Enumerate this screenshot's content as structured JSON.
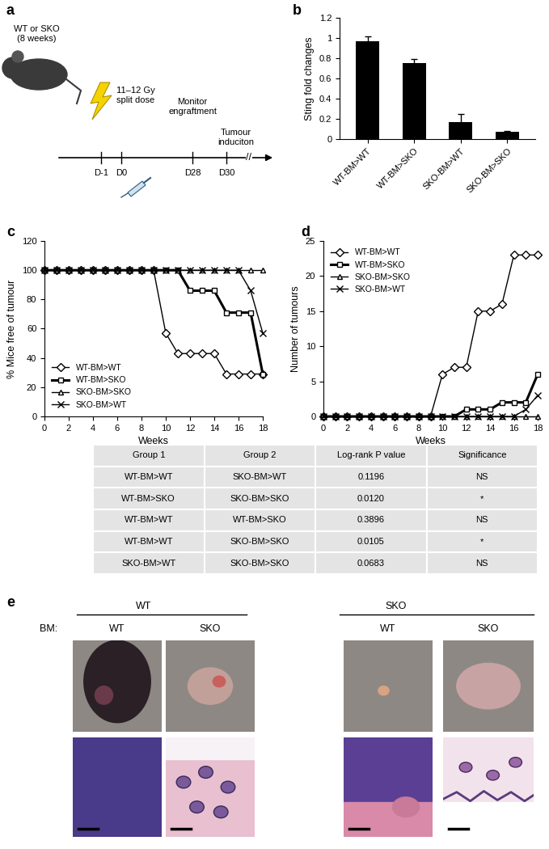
{
  "panel_labels": [
    "a",
    "b",
    "c",
    "d",
    "e"
  ],
  "schematic": {
    "mouse_label": "WT or SKO\n(8 weeks)",
    "irradiation": "11–12 Gy\nsplit dose",
    "monitor": "Monitor\nengraftment",
    "induction": "Tumour\ninduciton",
    "timepoints": [
      "D-1",
      "D0",
      "D28",
      "D30"
    ],
    "break": "//"
  },
  "chart_data": [
    {
      "type": "bar",
      "ylabel": "Sting fold changes",
      "categories": [
        "WT-BM>WT",
        "WT-BM>SKO",
        "SKO-BM>WT",
        "SKO-BM>SKO"
      ],
      "values": [
        0.97,
        0.75,
        0.17,
        0.07
      ],
      "errors": [
        0.05,
        0.04,
        0.08,
        0.01
      ],
      "color": "#000000",
      "ylim": [
        0,
        1.2
      ],
      "yticks": [
        0,
        0.2,
        0.4,
        0.6,
        0.8,
        1,
        1.2
      ]
    },
    {
      "type": "line",
      "xlabel": "Weeks",
      "ylabel": "% Mice free of tumour",
      "x": [
        0,
        1,
        2,
        3,
        4,
        5,
        6,
        7,
        8,
        9,
        10,
        11,
        12,
        13,
        14,
        15,
        16,
        17,
        18
      ],
      "series": [
        {
          "name": "WT-BM>WT",
          "color": "#000000",
          "marker": "diamond",
          "values": [
            100,
            100,
            100,
            100,
            100,
            100,
            100,
            100,
            100,
            100,
            57,
            43,
            43,
            43,
            43,
            29,
            29,
            29,
            29
          ]
        },
        {
          "name": "WT-BM>SKO",
          "color": "#000000",
          "marker": "square",
          "values": [
            100,
            100,
            100,
            100,
            100,
            100,
            100,
            100,
            100,
            100,
            100,
            100,
            86,
            86,
            86,
            71,
            71,
            71,
            29
          ]
        },
        {
          "name": "SKO-BM>SKO",
          "color": "#000000",
          "marker": "triangle",
          "values": [
            100,
            100,
            100,
            100,
            100,
            100,
            100,
            100,
            100,
            100,
            100,
            100,
            100,
            100,
            100,
            100,
            100,
            100,
            100
          ]
        },
        {
          "name": "SKO-BM>WT",
          "color": "#000000",
          "marker": "x",
          "values": [
            100,
            100,
            100,
            100,
            100,
            100,
            100,
            100,
            100,
            100,
            100,
            100,
            100,
            100,
            100,
            100,
            100,
            86,
            57
          ]
        }
      ],
      "xlim": [
        0,
        18
      ],
      "xticks": [
        0,
        2,
        4,
        6,
        8,
        10,
        12,
        14,
        16,
        18
      ],
      "ylim": [
        0,
        120
      ],
      "yticks": [
        0,
        20,
        40,
        60,
        80,
        100,
        120
      ],
      "legend": "lower left"
    },
    {
      "type": "line",
      "xlabel": "Weeks",
      "ylabel": "Number of tumours",
      "x": [
        0,
        1,
        2,
        3,
        4,
        5,
        6,
        7,
        8,
        9,
        10,
        11,
        12,
        13,
        14,
        15,
        16,
        17,
        18
      ],
      "series": [
        {
          "name": "WT-BM>WT",
          "color": "#000000",
          "marker": "diamond",
          "values": [
            0,
            0,
            0,
            0,
            0,
            0,
            0,
            0,
            0,
            0,
            6,
            7,
            7,
            15,
            15,
            16,
            23,
            23,
            23
          ]
        },
        {
          "name": "WT-BM>SKO",
          "color": "#000000",
          "marker": "square",
          "values": [
            0,
            0,
            0,
            0,
            0,
            0,
            0,
            0,
            0,
            0,
            0,
            0,
            1,
            1,
            1,
            2,
            2,
            2,
            6
          ]
        },
        {
          "name": "SKO-BM>SKO",
          "color": "#000000",
          "marker": "triangle",
          "values": [
            0,
            0,
            0,
            0,
            0,
            0,
            0,
            0,
            0,
            0,
            0,
            0,
            0,
            0,
            0,
            0,
            0,
            0,
            0
          ]
        },
        {
          "name": "SKO-BM>WT",
          "color": "#000000",
          "marker": "x",
          "values": [
            0,
            0,
            0,
            0,
            0,
            0,
            0,
            0,
            0,
            0,
            0,
            0,
            0,
            0,
            0,
            0,
            0,
            1,
            3
          ]
        }
      ],
      "xlim": [
        0,
        18
      ],
      "xticks": [
        0,
        2,
        4,
        6,
        8,
        10,
        12,
        14,
        16,
        18
      ],
      "ylim": [
        0,
        25
      ],
      "yticks": [
        0,
        5,
        10,
        15,
        20,
        25
      ],
      "legend": "upper left"
    }
  ],
  "table": {
    "header": [
      "Group 1",
      "Group 2",
      "Log-rank P value",
      "Significance"
    ],
    "rows": [
      [
        "WT-BM>WT",
        "SKO-BM>WT",
        "0.1196",
        "NS"
      ],
      [
        "WT-BM>SKO",
        "SKO-BM>SKO",
        "0.0120",
        "*"
      ],
      [
        "WT-BM>WT",
        "WT-BM>SKO",
        "0.3896",
        "NS"
      ],
      [
        "WT-BM>WT",
        "SKO-BM>SKO",
        "0.0105",
        "*"
      ],
      [
        "SKO-BM>WT",
        "SKO-BM>SKO",
        "0.0683",
        "NS"
      ]
    ]
  },
  "images": {
    "genotype_headers": [
      "WT",
      "SKO"
    ],
    "bm_label": "BM:",
    "bm_labels": [
      "WT",
      "SKO",
      "WT",
      "SKO"
    ]
  }
}
